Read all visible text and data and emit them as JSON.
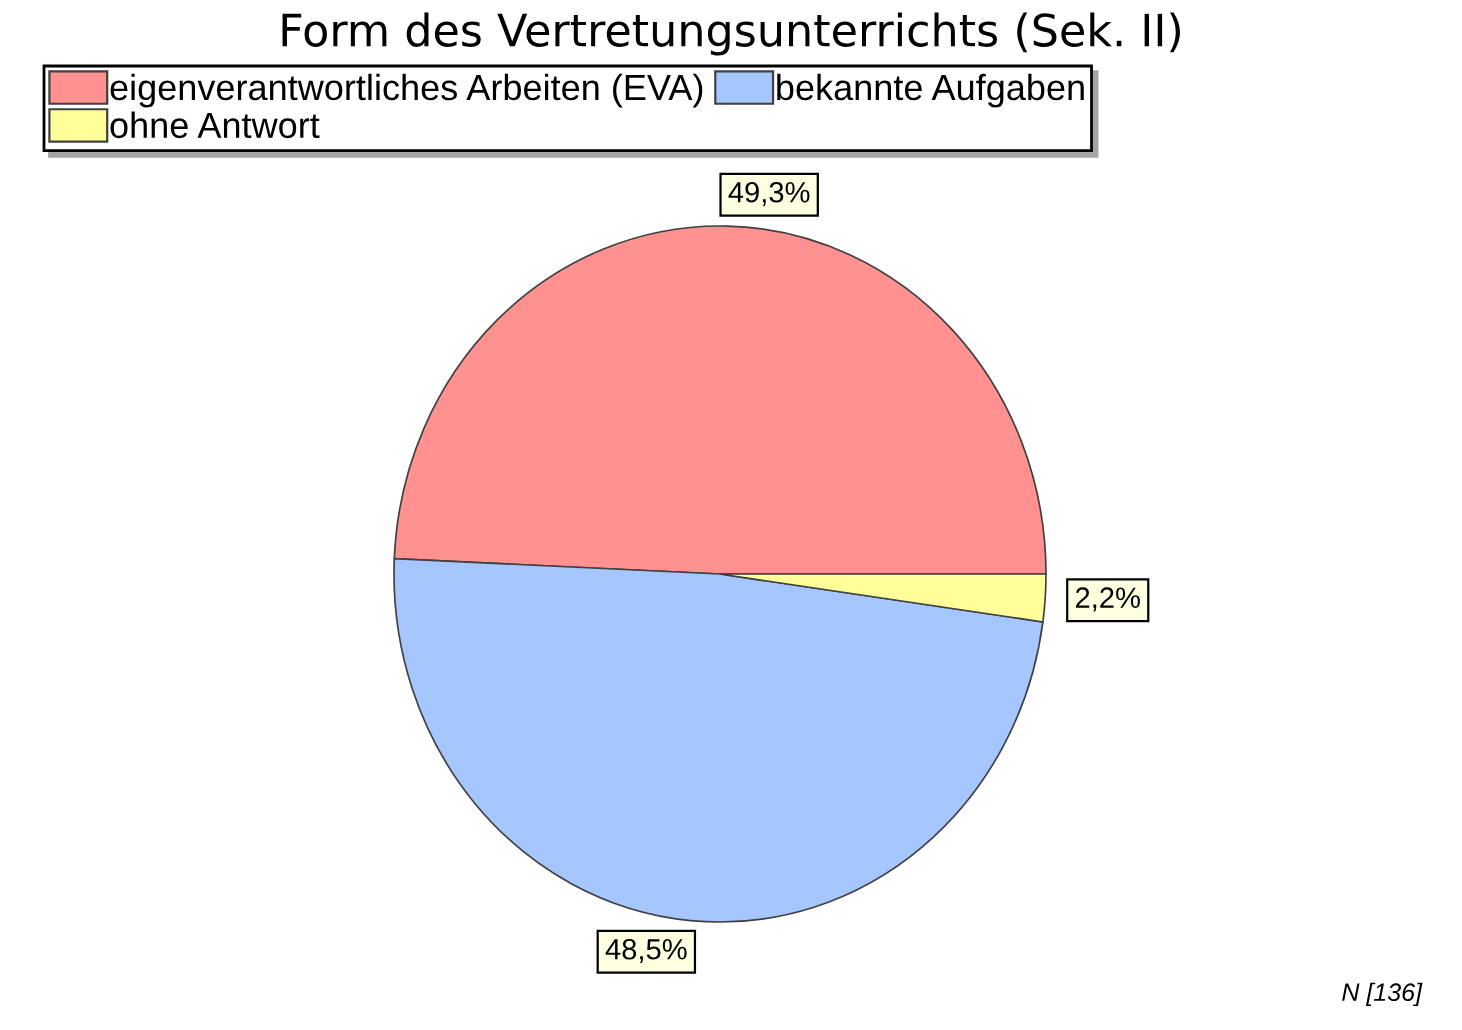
{
  "chart_data": {
    "type": "pie",
    "title": "Form des Vertretungsunterrichts (Sek. II)",
    "categories": [
      "eigenverantwortliches Arbeiten (EVA)",
      "bekannte Aufgaben",
      "ohne Antwort"
    ],
    "values": [
      49.3,
      48.5,
      2.2
    ],
    "colors": [
      "#ff9191",
      "#a6c6ff",
      "#ffff99"
    ],
    "value_labels": [
      "49,3%",
      "48,5%",
      "2,2%"
    ],
    "legend": "top",
    "annotations": [
      "N [136]"
    ]
  }
}
